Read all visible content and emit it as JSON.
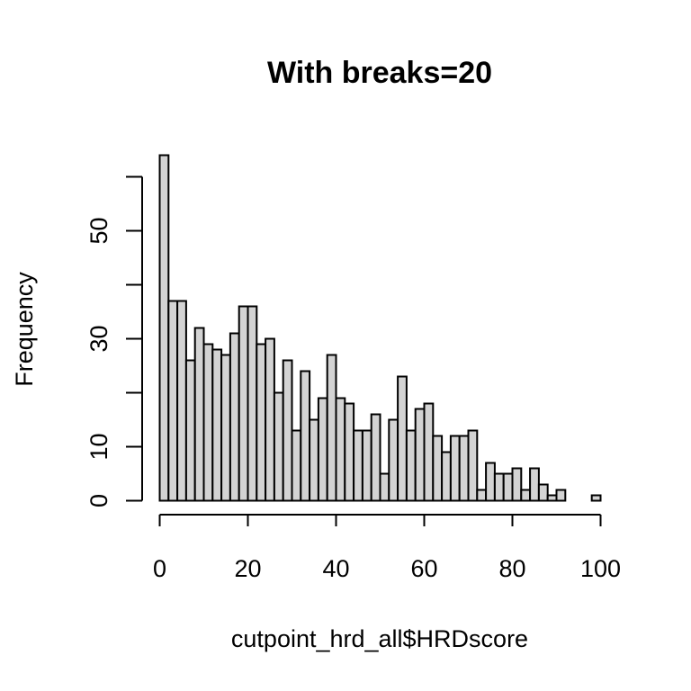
{
  "chart_data": {
    "type": "bar",
    "title": "With breaks=20",
    "xlabel": "cutpoint_hrd_all$HRDscore",
    "ylabel": "Frequency",
    "bin_width": 2,
    "x_start": 0,
    "values": [
      64,
      37,
      37,
      26,
      32,
      29,
      28,
      27,
      31,
      36,
      36,
      29,
      30,
      20,
      26,
      13,
      24,
      15,
      19,
      27,
      19,
      18,
      13,
      13,
      16,
      5,
      15,
      23,
      13,
      17,
      18,
      12,
      9,
      12,
      12,
      13,
      2,
      7,
      5,
      5,
      6,
      2,
      6,
      3,
      1,
      2,
      0,
      0,
      0,
      1
    ],
    "xlim": [
      0,
      100
    ],
    "ylim": [
      0,
      60
    ],
    "x_ticks": [
      0,
      20,
      40,
      60,
      80,
      100
    ],
    "y_ticks": [
      0,
      10,
      20,
      30,
      40,
      50,
      60
    ],
    "y_tick_labels": [
      "0",
      "10",
      "",
      "30",
      "",
      "50",
      ""
    ],
    "bar_color": "#d3d3d3",
    "grid": false
  }
}
